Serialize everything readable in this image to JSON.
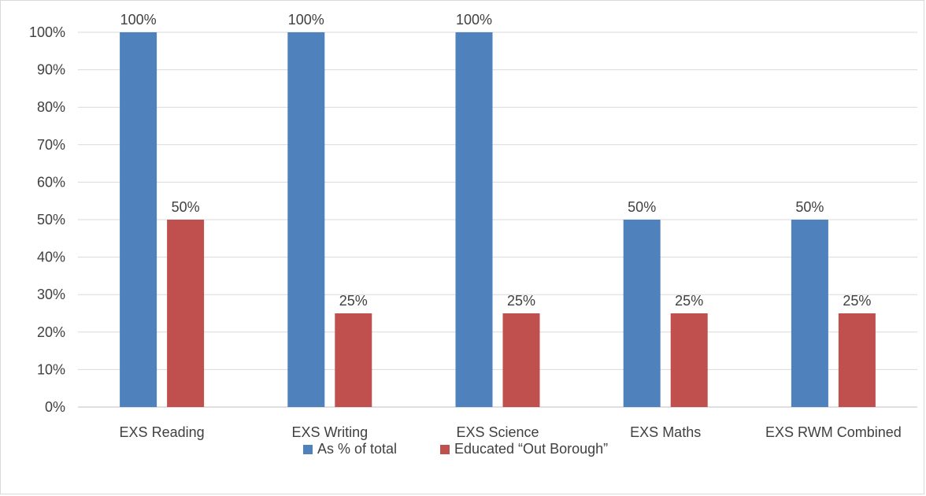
{
  "chart_data": {
    "type": "bar",
    "title": "",
    "xlabel": "",
    "ylabel": "",
    "categories": [
      "EXS Reading",
      "EXS Writing",
      "EXS Science",
      "EXS Maths",
      "EXS RWM Combined"
    ],
    "series": [
      {
        "name": "As % of total",
        "values": [
          100,
          100,
          100,
          50,
          50
        ],
        "color": "#4f81bd"
      },
      {
        "name": "Educated “Out Borough”",
        "values": [
          50,
          25,
          25,
          25,
          25
        ],
        "color": "#c0504d"
      }
    ],
    "ylim": [
      0,
      100
    ],
    "yticks": [
      "0%",
      "10%",
      "20%",
      "30%",
      "40%",
      "50%",
      "60%",
      "70%",
      "80%",
      "90%",
      "100%"
    ],
    "value_suffix": "%",
    "grid": true,
    "legend_position": "bottom"
  }
}
